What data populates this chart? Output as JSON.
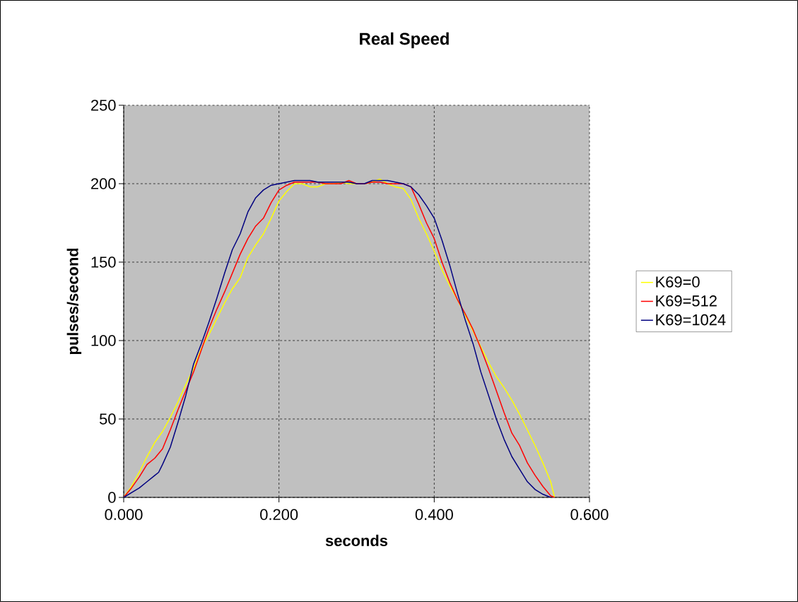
{
  "chart_data": {
    "type": "line",
    "title": "Real Speed",
    "xlabel": "seconds",
    "ylabel": "pulses/second",
    "xlim": [
      0,
      0.6
    ],
    "ylim": [
      0,
      250
    ],
    "xticks": [
      {
        "value": 0,
        "label": "0.000"
      },
      {
        "value": 0.2,
        "label": "0.200"
      },
      {
        "value": 0.4,
        "label": "0.400"
      },
      {
        "value": 0.6,
        "label": "0.600"
      }
    ],
    "yticks": [
      0,
      50,
      100,
      150,
      200,
      250
    ],
    "grid": true,
    "legend": "right",
    "marker": "none",
    "line_style": "solid",
    "series": [
      {
        "name": "K69=0",
        "color": "#ffff00",
        "x": [
          0,
          0.01,
          0.02,
          0.03,
          0.04,
          0.05,
          0.06,
          0.07,
          0.08,
          0.09,
          0.1,
          0.11,
          0.12,
          0.13,
          0.14,
          0.15,
          0.16,
          0.17,
          0.18,
          0.19,
          0.2,
          0.21,
          0.22,
          0.23,
          0.24,
          0.25,
          0.26,
          0.27,
          0.28,
          0.29,
          0.3,
          0.31,
          0.32,
          0.33,
          0.34,
          0.35,
          0.36,
          0.37,
          0.38,
          0.39,
          0.4,
          0.41,
          0.42,
          0.43,
          0.44,
          0.45,
          0.46,
          0.47,
          0.48,
          0.49,
          0.5,
          0.51,
          0.52,
          0.53,
          0.54,
          0.55,
          0.555
        ],
        "values": [
          0,
          7,
          16,
          26,
          35,
          42,
          51,
          61,
          72,
          82,
          95,
          104,
          114,
          124,
          133,
          140,
          153,
          161,
          168,
          178,
          189,
          195,
          200,
          200,
          198,
          198,
          200,
          200,
          201,
          200,
          200,
          200,
          201,
          203,
          200,
          198,
          197,
          190,
          178,
          168,
          157,
          145,
          135,
          126,
          116,
          106,
          96,
          86,
          77,
          70,
          62,
          53,
          43,
          33,
          22,
          10,
          0
        ]
      },
      {
        "name": "K69=512",
        "color": "#ff0000",
        "x": [
          0,
          0.01,
          0.02,
          0.03,
          0.04,
          0.05,
          0.06,
          0.07,
          0.08,
          0.09,
          0.1,
          0.11,
          0.12,
          0.13,
          0.14,
          0.15,
          0.16,
          0.17,
          0.18,
          0.19,
          0.2,
          0.21,
          0.22,
          0.23,
          0.24,
          0.25,
          0.26,
          0.27,
          0.28,
          0.29,
          0.3,
          0.31,
          0.32,
          0.33,
          0.34,
          0.35,
          0.36,
          0.37,
          0.38,
          0.39,
          0.4,
          0.41,
          0.42,
          0.43,
          0.44,
          0.45,
          0.46,
          0.47,
          0.48,
          0.49,
          0.5,
          0.51,
          0.52,
          0.53,
          0.54,
          0.55,
          0.555
        ],
        "values": [
          0,
          6,
          13,
          21,
          25,
          31,
          43,
          56,
          68,
          80,
          94,
          108,
          120,
          131,
          143,
          155,
          165,
          173,
          178,
          188,
          196,
          199,
          201,
          201,
          201,
          201,
          200,
          200,
          200,
          202,
          200,
          200,
          201,
          201,
          200,
          200,
          200,
          198,
          187,
          175,
          165,
          150,
          137,
          126,
          117,
          107,
          95,
          82,
          68,
          54,
          41,
          33,
          22,
          14,
          7,
          1,
          0
        ]
      },
      {
        "name": "K69=1024",
        "color": "#000080",
        "x": [
          0,
          0.01,
          0.02,
          0.03,
          0.04,
          0.045,
          0.05,
          0.06,
          0.07,
          0.08,
          0.09,
          0.1,
          0.11,
          0.12,
          0.13,
          0.14,
          0.15,
          0.16,
          0.17,
          0.18,
          0.19,
          0.2,
          0.21,
          0.22,
          0.23,
          0.24,
          0.25,
          0.26,
          0.27,
          0.28,
          0.29,
          0.3,
          0.31,
          0.32,
          0.33,
          0.34,
          0.35,
          0.36,
          0.37,
          0.38,
          0.39,
          0.4,
          0.41,
          0.42,
          0.43,
          0.44,
          0.45,
          0.46,
          0.47,
          0.48,
          0.49,
          0.5,
          0.51,
          0.52,
          0.53,
          0.54,
          0.55
        ],
        "values": [
          0,
          3,
          6,
          10,
          14,
          16,
          21,
          32,
          48,
          65,
          85,
          98,
          112,
          127,
          143,
          158,
          168,
          182,
          191,
          196,
          199,
          200,
          201,
          202,
          202,
          202,
          201,
          201,
          201,
          201,
          201,
          200,
          200,
          202,
          202,
          202,
          201,
          200,
          198,
          193,
          186,
          178,
          164,
          148,
          130,
          113,
          98,
          80,
          65,
          50,
          37,
          26,
          18,
          10,
          5,
          2,
          0
        ]
      }
    ]
  }
}
